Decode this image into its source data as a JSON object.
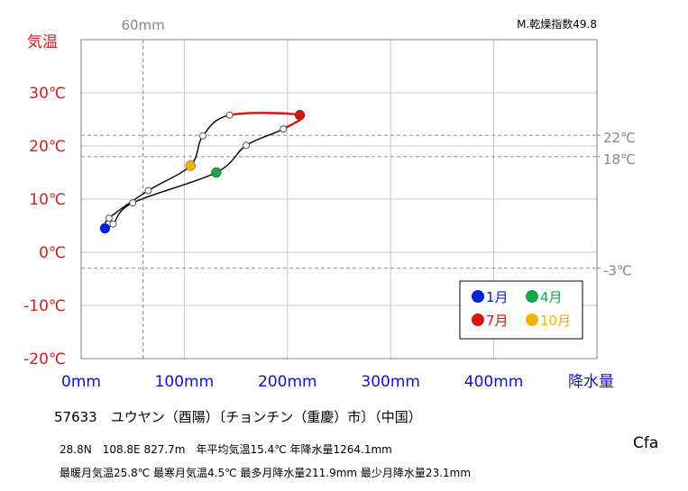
{
  "chart_data": {
    "type": "line",
    "title": "",
    "xlabel": "降水量",
    "ylabel": "気温",
    "xlim": [
      0,
      500
    ],
    "ylim": [
      -20,
      40
    ],
    "xticks": [
      {
        "value": 0,
        "label": "0mm"
      },
      {
        "value": 100,
        "label": "100mm"
      },
      {
        "value": 200,
        "label": "200mm"
      },
      {
        "value": 300,
        "label": "300mm"
      },
      {
        "value": 400,
        "label": "400mm"
      }
    ],
    "yticks": [
      {
        "value": -20,
        "label": "-20℃"
      },
      {
        "value": -10,
        "label": "-10℃"
      },
      {
        "value": 0,
        "label": "0℃"
      },
      {
        "value": 10,
        "label": "10℃"
      },
      {
        "value": 20,
        "label": "20℃"
      },
      {
        "value": 30,
        "label": "30℃"
      }
    ],
    "grid": true,
    "reference_lines": [
      {
        "axis": "x",
        "value": 60,
        "label": "60mm"
      },
      {
        "axis": "y",
        "value": 22,
        "label": "22℃"
      },
      {
        "axis": "y",
        "value": 18,
        "label": "18℃"
      },
      {
        "axis": "y",
        "value": -3,
        "label": "-3℃"
      }
    ],
    "corner_label": "M.乾燥指数49.8",
    "series": [
      {
        "months": [
          1,
          2,
          3,
          4,
          5,
          6,
          7,
          8,
          9,
          10,
          11,
          12,
          1
        ],
        "precip": [
          23.1,
          31,
          50,
          131,
          160,
          196,
          212,
          144,
          118,
          106,
          65,
          27,
          23.1
        ],
        "temp": [
          4.5,
          5.3,
          9.3,
          15.0,
          20.1,
          23.2,
          25.8,
          25.8,
          21.9,
          16.3,
          11.6,
          6.4,
          4.5
        ]
      }
    ],
    "highlight_months": [
      {
        "month": 1,
        "label": "1月",
        "color": "#0022dd"
      },
      {
        "month": 4,
        "label": "4月",
        "color": "#13a64c"
      },
      {
        "month": 7,
        "label": "7月",
        "color": "#dd1111"
      },
      {
        "month": 10,
        "label": "10月",
        "color": "#f0b400"
      }
    ],
    "legend_position": "bottom-right",
    "colors": {
      "axis_text": "#1111cc",
      "temp_text": "#cc2222",
      "ref_text": "#888888",
      "line": "#000000",
      "summer_segment": "#dd1111"
    }
  },
  "station": "57633　ユウヤン（酉陽）〔チョンチン（重慶）市〕（中国）",
  "info_line1": "28.8N　108.8E  827.7m　年平均気温15.4℃  年降水量1264.1mm",
  "info_line2": "最暖月気温25.8℃  最寒月気温4.5℃  最多月降水量211.9mm  最少月降水量23.1mm",
  "koppen": "Cfa"
}
